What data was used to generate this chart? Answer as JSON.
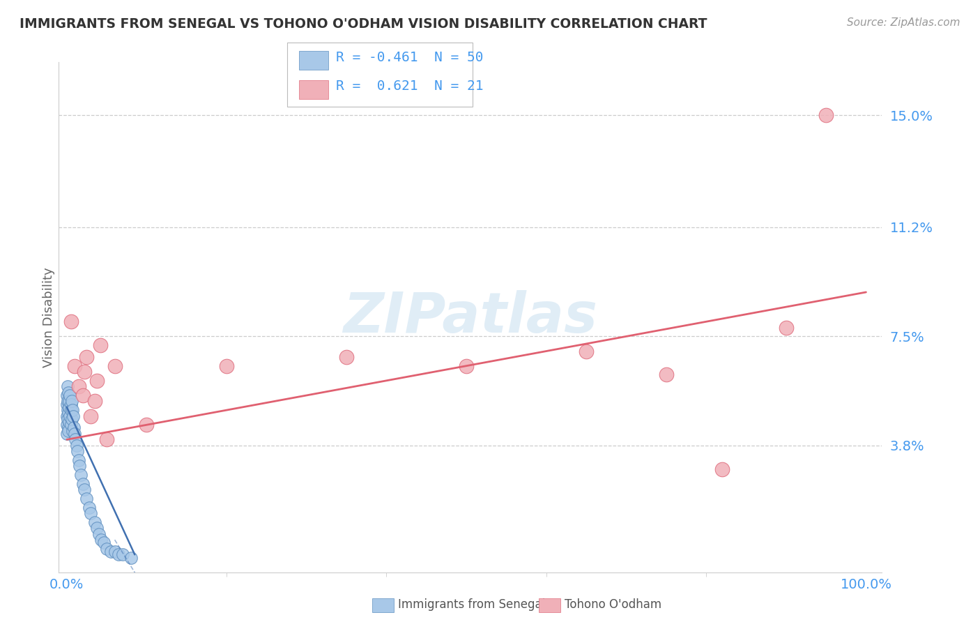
{
  "title": "IMMIGRANTS FROM SENEGAL VS TOHONO O'ODHAM VISION DISABILITY CORRELATION CHART",
  "source": "Source: ZipAtlas.com",
  "ylabel": "Vision Disability",
  "xlim": [
    -0.01,
    1.02
  ],
  "ylim": [
    -0.005,
    0.168
  ],
  "yticks": [
    0.038,
    0.075,
    0.112,
    0.15
  ],
  "ytick_labels": [
    "3.8%",
    "7.5%",
    "11.2%",
    "15.0%"
  ],
  "xtick_labels": [
    "0.0%",
    "100.0%"
  ],
  "blue_color": "#a8c8e8",
  "blue_edge_color": "#6090c0",
  "pink_color": "#f0b0b8",
  "pink_edge_color": "#e07080",
  "blue_line_color": "#4070b0",
  "pink_line_color": "#e06070",
  "tick_color": "#4499ee",
  "grid_color": "#cccccc",
  "watermark": "ZIPatlas",
  "legend_R_blue": "-0.461",
  "legend_N_blue": "50",
  "legend_R_pink": "0.621",
  "legend_N_pink": "21",
  "blue_x": [
    0.0,
    0.0,
    0.0,
    0.0,
    0.0,
    0.001,
    0.001,
    0.001,
    0.001,
    0.002,
    0.002,
    0.002,
    0.002,
    0.003,
    0.003,
    0.003,
    0.004,
    0.004,
    0.005,
    0.005,
    0.005,
    0.006,
    0.006,
    0.007,
    0.007,
    0.008,
    0.009,
    0.01,
    0.011,
    0.012,
    0.013,
    0.015,
    0.016,
    0.018,
    0.02,
    0.022,
    0.025,
    0.028,
    0.03,
    0.035,
    0.038,
    0.04,
    0.043,
    0.046,
    0.05,
    0.055,
    0.06,
    0.065,
    0.07,
    0.08
  ],
  "blue_y": [
    0.048,
    0.052,
    0.045,
    0.055,
    0.042,
    0.05,
    0.047,
    0.053,
    0.058,
    0.044,
    0.049,
    0.056,
    0.043,
    0.051,
    0.046,
    0.053,
    0.048,
    0.055,
    0.045,
    0.052,
    0.05,
    0.047,
    0.053,
    0.043,
    0.05,
    0.048,
    0.044,
    0.042,
    0.04,
    0.038,
    0.036,
    0.033,
    0.031,
    0.028,
    0.025,
    0.023,
    0.02,
    0.017,
    0.015,
    0.012,
    0.01,
    0.008,
    0.006,
    0.005,
    0.003,
    0.002,
    0.002,
    0.001,
    0.001,
    0.0
  ],
  "pink_x": [
    0.005,
    0.01,
    0.015,
    0.02,
    0.022,
    0.025,
    0.03,
    0.035,
    0.038,
    0.042,
    0.05,
    0.06,
    0.1,
    0.2,
    0.35,
    0.5,
    0.65,
    0.75,
    0.82,
    0.9,
    0.95
  ],
  "pink_y": [
    0.08,
    0.065,
    0.058,
    0.055,
    0.063,
    0.068,
    0.048,
    0.053,
    0.06,
    0.072,
    0.04,
    0.065,
    0.045,
    0.065,
    0.068,
    0.065,
    0.07,
    0.062,
    0.03,
    0.078,
    0.15
  ],
  "blue_trend_x": [
    0.0,
    0.085
  ],
  "blue_trend_y": [
    0.051,
    0.001
  ],
  "pink_trend_x": [
    0.0,
    1.0
  ],
  "pink_trend_y": [
    0.04,
    0.09
  ]
}
